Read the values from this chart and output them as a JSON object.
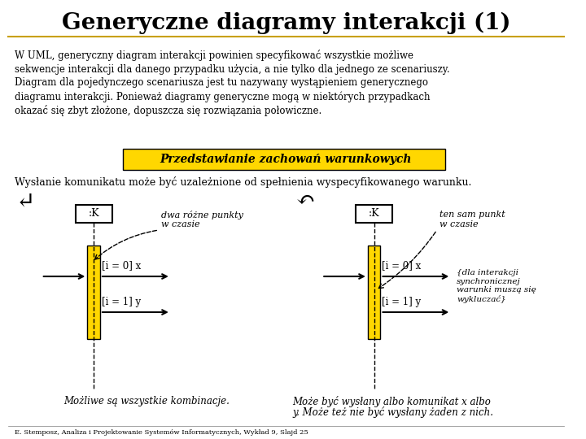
{
  "title": "Generyczne diagramy interakcji (1)",
  "background_color": "#ffffff",
  "title_fontsize": 20,
  "highlight_box_color": "#FFD700",
  "highlight_text": "Przedstawianie zachowań warunkowych",
  "subtext": "Wysłanie komunikatu może być uzależnione od spełnienia wyspecyfikowanego warunku.",
  "footer": "E. Stemposz, Analiza i Projektowanie Systemów Informatycznych, Wykład 9, Slajd 25",
  "left_caption_bottom": "Możliwe są wszystkie kombinacje.",
  "right_caption_bottom1": "Może być wysłany albo komunikat x albo",
  "right_caption_bottom2": "y. Może też nie być wysłany żaden z nich.",
  "left_label1": "[i = 0] x",
  "left_label2": "[i = 1] y",
  "right_label1": "[i = 0] x",
  "right_label2": "[i = 1] y",
  "left_note": "dwa różne punkty\nw czasie",
  "right_note": "ten sam punkt\nw czasie",
  "right_note2": "{dla interakcji\nsynchronicznej\nwarunki muszą się\nwykluczać}",
  "box_color": "#FFD700",
  "line_color": "#000000",
  "arrow_color": "#000000",
  "body_lines": [
    "W UML, generyczny diagram interakcji powinien specyfikować wszystkie możliwe",
    "sekwencje interakcji dla danego przypadku użycia, a nie tylko dla jednego ze scenariuszy.",
    "Diagram dla pojedynczego scenariusza jest tu nazywany wystąpieniem generycznego",
    "diagramu interakcji. Ponieważ diagramy generyczne mogą w niektórych przypadkach",
    "okazać się zbyt złożone, dopuszcza się rozwiązania połowiczne."
  ]
}
